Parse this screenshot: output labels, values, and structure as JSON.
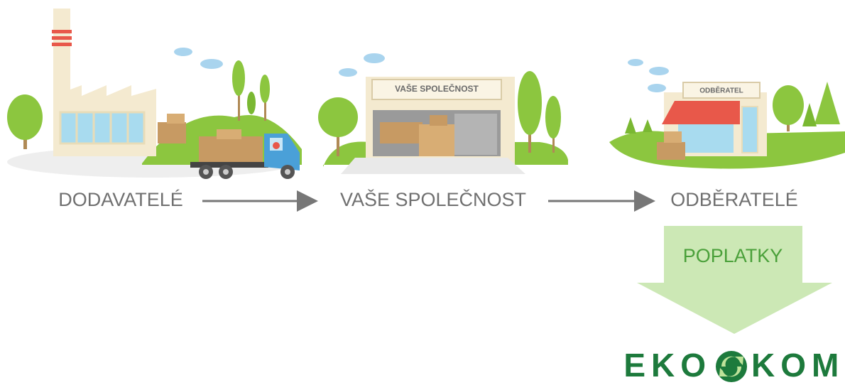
{
  "nodes": [
    {
      "label": "DODAVATELÉ"
    },
    {
      "label": "VAŠE SPOLEČNOST",
      "sign": "VAŠE SPOLEČNOST"
    },
    {
      "label": "ODBĚRATELÉ",
      "sign": "ODBĚRATEL"
    }
  ],
  "fee": {
    "label": "POPLATKY"
  },
  "logo": {
    "left": "EKO",
    "right": "KOM"
  }
}
